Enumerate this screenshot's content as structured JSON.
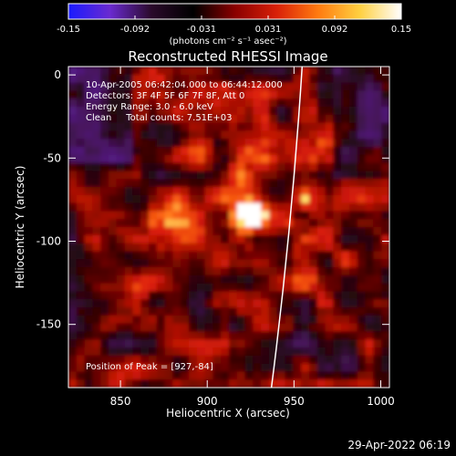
{
  "colorbar": {
    "tick_labels": [
      "-0.15",
      "-0.092",
      "-0.031",
      "0.031",
      "0.092",
      "0.15"
    ],
    "unit_label": "(photons cm⁻² s⁻¹ asec⁻²)",
    "colors": [
      "#1a1aff",
      "#6a2ad0",
      "#2a0a2a",
      "#000000",
      "#8a0000",
      "#d82008",
      "#ff7a10",
      "#ffd040",
      "#ffffff"
    ]
  },
  "chart_data": {
    "type": "heatmap",
    "title": "Reconstructed RHESSI Image",
    "xlabel": "Heliocentric X (arcsec)",
    "ylabel": "Heliocentric Y (arcsec)",
    "xlim": [
      820,
      1005
    ],
    "ylim": [
      -188,
      5
    ],
    "x_ticks": [
      "850",
      "900",
      "950",
      "1000"
    ],
    "y_ticks": [
      "0",
      "-50",
      "-100",
      "-150"
    ],
    "colorbar_range": [
      -0.15,
      0.15
    ],
    "peak_position": [
      927,
      -84
    ],
    "limb": {
      "x_top": 955,
      "x_bottom": 937
    },
    "info_lines": [
      "10-Apr-2005 06:42:04.000 to 06:44:12.000",
      "Detectors: 3F 4F 5F 6F 7F 8F, Att 0",
      "Energy Range: 3.0 - 6.0 keV",
      "Clean     Total counts: 7.51E+03"
    ],
    "peak_text": "Position of Peak = [927,-84]"
  },
  "footer": {
    "date": "29-Apr-2022 06:19"
  }
}
